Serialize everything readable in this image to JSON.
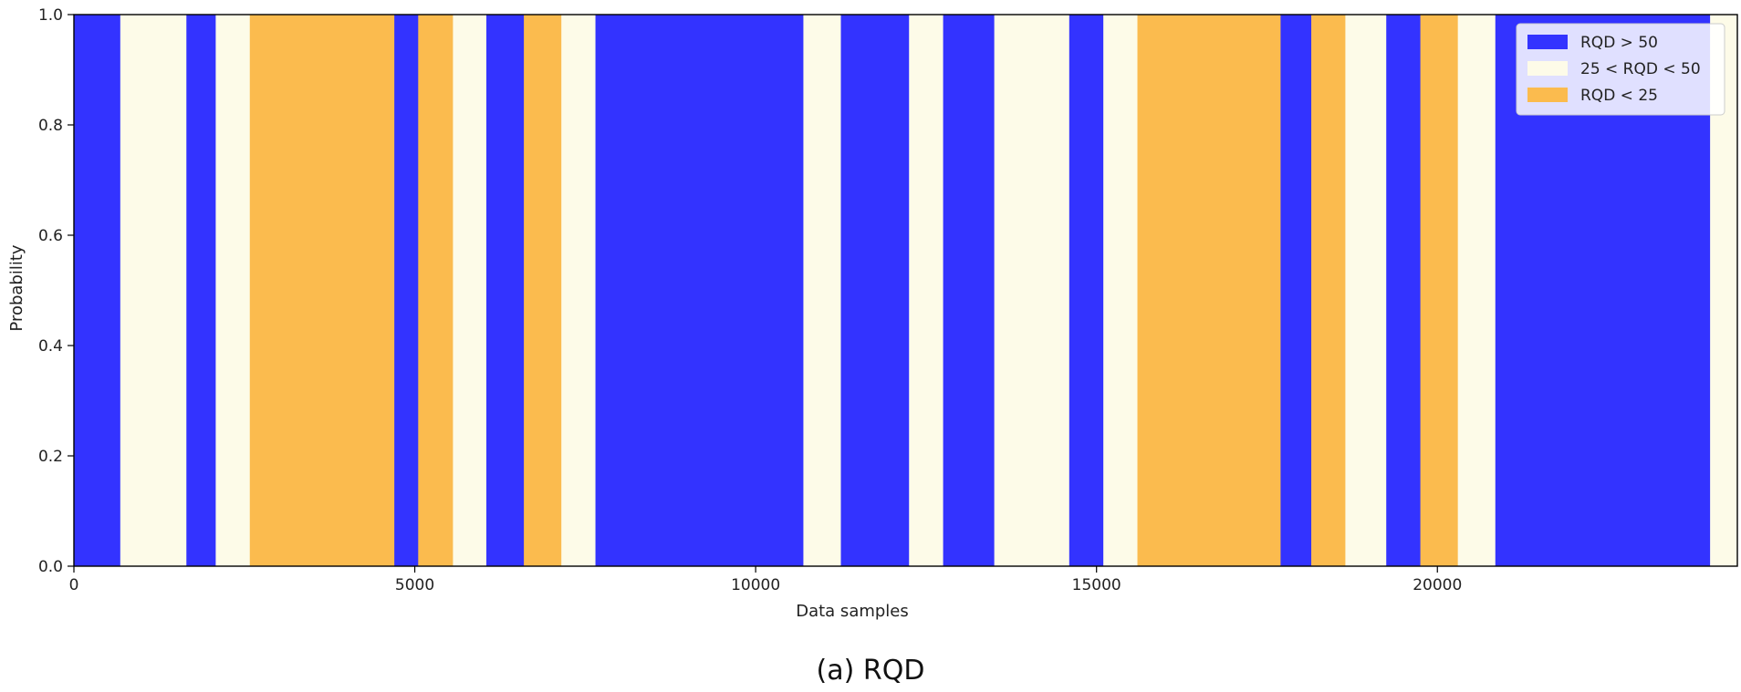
{
  "chart_data": {
    "type": "area",
    "stacked": true,
    "title": "",
    "xlabel": "Data samples",
    "ylabel": "Probability",
    "xlim": [
      0,
      24400
    ],
    "ylim": [
      0,
      1.0
    ],
    "xticks": [
      0,
      5000,
      10000,
      15000,
      20000
    ],
    "xtick_labels": [
      "0",
      "5000",
      "10000",
      "15000",
      "20000"
    ],
    "yticks": [
      0,
      0.2,
      0.4,
      0.6,
      0.8,
      1.0
    ],
    "ytick_labels": [
      "0.0",
      "0.2",
      "0.4",
      "0.6",
      "0.8",
      "1.0"
    ],
    "grid": false,
    "legend_position": "top-right",
    "series": [
      {
        "name": "RQD > 50",
        "color": "#3333ff"
      },
      {
        "name": "25 < RQD < 50",
        "color": "#fdfbe8"
      },
      {
        "name": "RQD < 25",
        "color": "#fbbb4e"
      }
    ],
    "segments": [
      {
        "x0": 0,
        "x1": 680,
        "class": "RQD > 50"
      },
      {
        "x0": 680,
        "x1": 1650,
        "class": "25 < RQD < 50"
      },
      {
        "x0": 1650,
        "x1": 2080,
        "class": "RQD > 50"
      },
      {
        "x0": 2080,
        "x1": 2580,
        "class": "25 < RQD < 50"
      },
      {
        "x0": 2580,
        "x1": 4700,
        "class": "RQD < 25"
      },
      {
        "x0": 4700,
        "x1": 5050,
        "class": "RQD > 50"
      },
      {
        "x0": 5050,
        "x1": 5560,
        "class": "RQD < 25"
      },
      {
        "x0": 5560,
        "x1": 6050,
        "class": "25 < RQD < 50"
      },
      {
        "x0": 6050,
        "x1": 6600,
        "class": "RQD > 50"
      },
      {
        "x0": 6600,
        "x1": 7150,
        "class": "RQD < 25"
      },
      {
        "x0": 7150,
        "x1": 7650,
        "class": "25 < RQD < 50"
      },
      {
        "x0": 7650,
        "x1": 10700,
        "class": "RQD > 50"
      },
      {
        "x0": 10700,
        "x1": 11250,
        "class": "25 < RQD < 50"
      },
      {
        "x0": 11250,
        "x1": 12250,
        "class": "RQD > 50"
      },
      {
        "x0": 12250,
        "x1": 12750,
        "class": "25 < RQD < 50"
      },
      {
        "x0": 12750,
        "x1": 13500,
        "class": "RQD > 50"
      },
      {
        "x0": 13500,
        "x1": 14600,
        "class": "25 < RQD < 50"
      },
      {
        "x0": 14600,
        "x1": 15100,
        "class": "RQD > 50"
      },
      {
        "x0": 15100,
        "x1": 15600,
        "class": "25 < RQD < 50"
      },
      {
        "x0": 15600,
        "x1": 17700,
        "class": "RQD < 25"
      },
      {
        "x0": 17700,
        "x1": 18150,
        "class": "RQD > 50"
      },
      {
        "x0": 18150,
        "x1": 18650,
        "class": "RQD < 25"
      },
      {
        "x0": 18650,
        "x1": 19250,
        "class": "25 < RQD < 50"
      },
      {
        "x0": 19250,
        "x1": 19750,
        "class": "RQD > 50"
      },
      {
        "x0": 19750,
        "x1": 20300,
        "class": "RQD < 25"
      },
      {
        "x0": 20300,
        "x1": 20850,
        "class": "25 < RQD < 50"
      },
      {
        "x0": 20850,
        "x1": 24000,
        "class": "RQD > 50"
      },
      {
        "x0": 24000,
        "x1": 24400,
        "class": "25 < RQD < 50"
      }
    ],
    "annotations": []
  },
  "caption": "(a) RQD"
}
